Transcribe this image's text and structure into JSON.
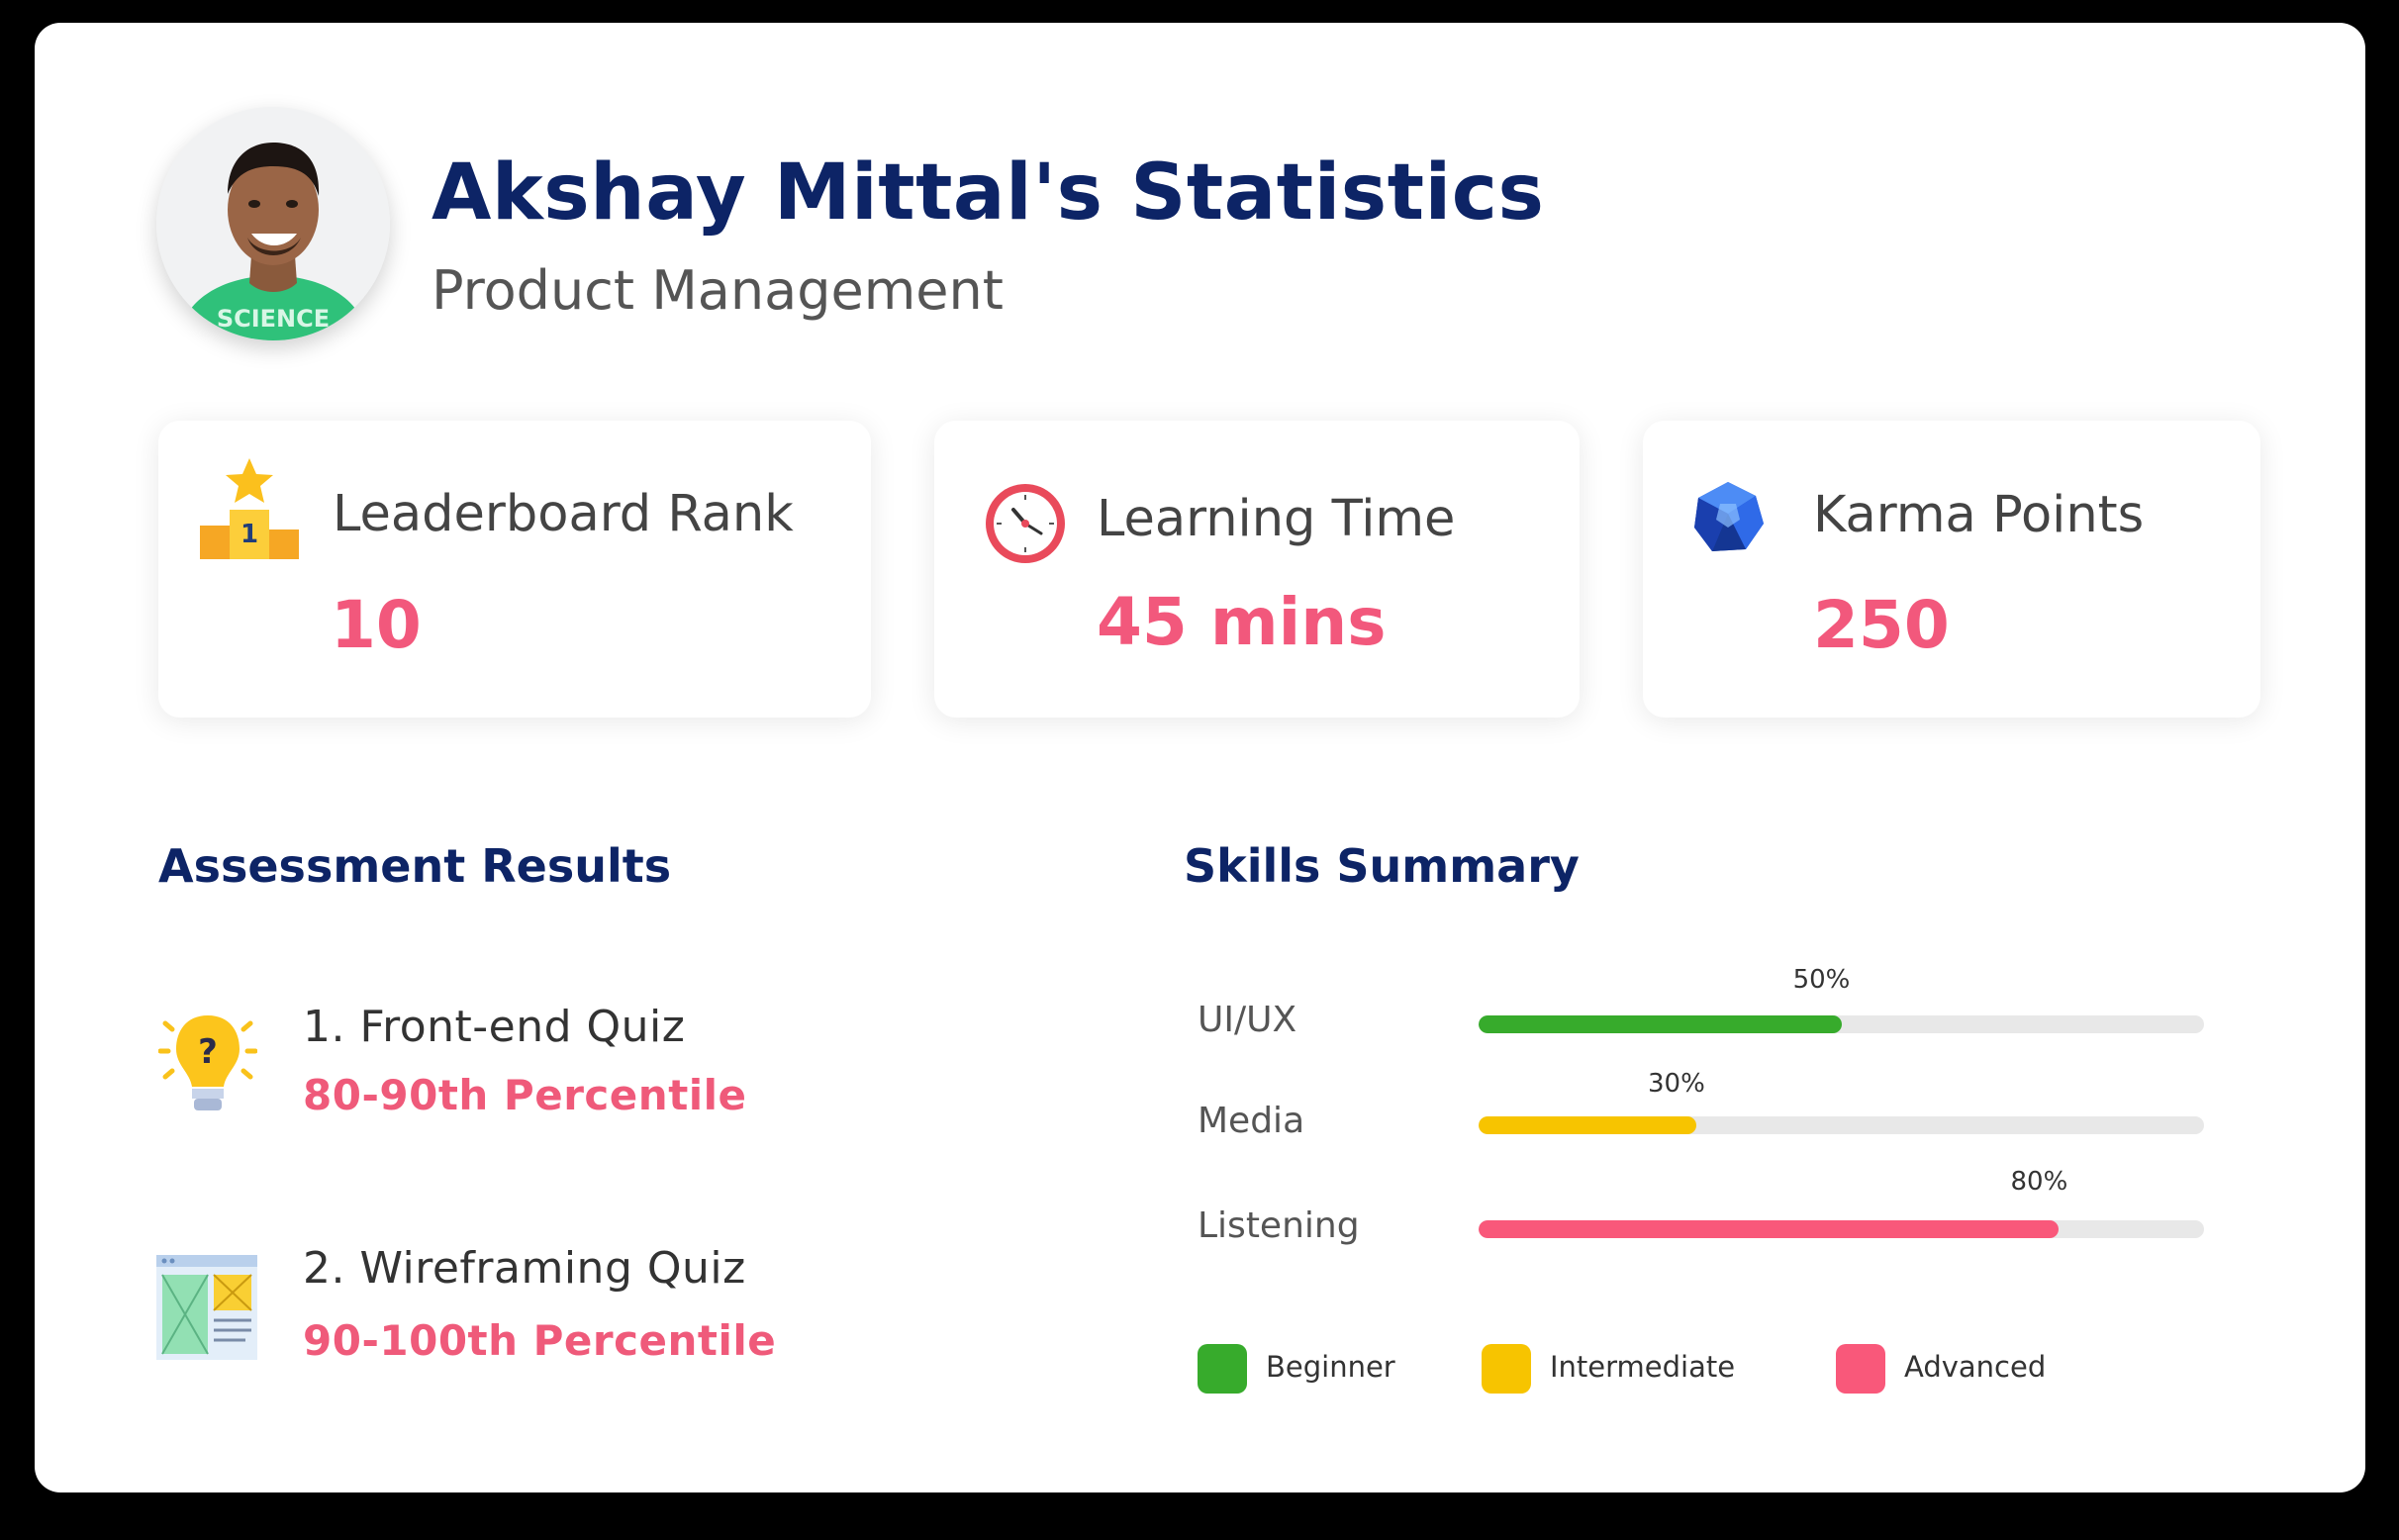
{
  "profile": {
    "title": "Akshay Mittal's Statistics",
    "subtitle": "Product Management",
    "shirt_text": "SCIENCE"
  },
  "stats": [
    {
      "label": "Leaderboard Rank",
      "value": "10",
      "icon": "podium-icon"
    },
    {
      "label": "Learning Time",
      "value": "45 mins",
      "icon": "clock-icon"
    },
    {
      "label": "Karma Points",
      "value": "250",
      "icon": "gem-icon"
    }
  ],
  "assessment": {
    "title": "Assessment Results",
    "items": [
      {
        "name": "1. Front-end Quiz",
        "percentile": "80-90th Percentile",
        "icon": "lightbulb-icon"
      },
      {
        "name": "2. Wireframing Quiz",
        "percentile": "90-100th Percentile",
        "icon": "wireframe-icon"
      }
    ]
  },
  "skills": {
    "title": "Skills Summary",
    "items": [
      {
        "label": "UI/UX",
        "percent_text": "50%",
        "percent": 0.5,
        "level": "Beginner",
        "color": "#37ab2c"
      },
      {
        "label": "Media",
        "percent_text": "30%",
        "percent": 0.3,
        "level": "Intermediate",
        "color": "#f7c400"
      },
      {
        "label": "Listening",
        "percent_text": "80%",
        "percent": 0.8,
        "level": "Advanced",
        "color": "#f9587a"
      }
    ],
    "legend": [
      {
        "label": "Beginner",
        "color": "#37ab2c"
      },
      {
        "label": "Intermediate",
        "color": "#f7c400"
      },
      {
        "label": "Advanced",
        "color": "#f9587a"
      }
    ]
  }
}
